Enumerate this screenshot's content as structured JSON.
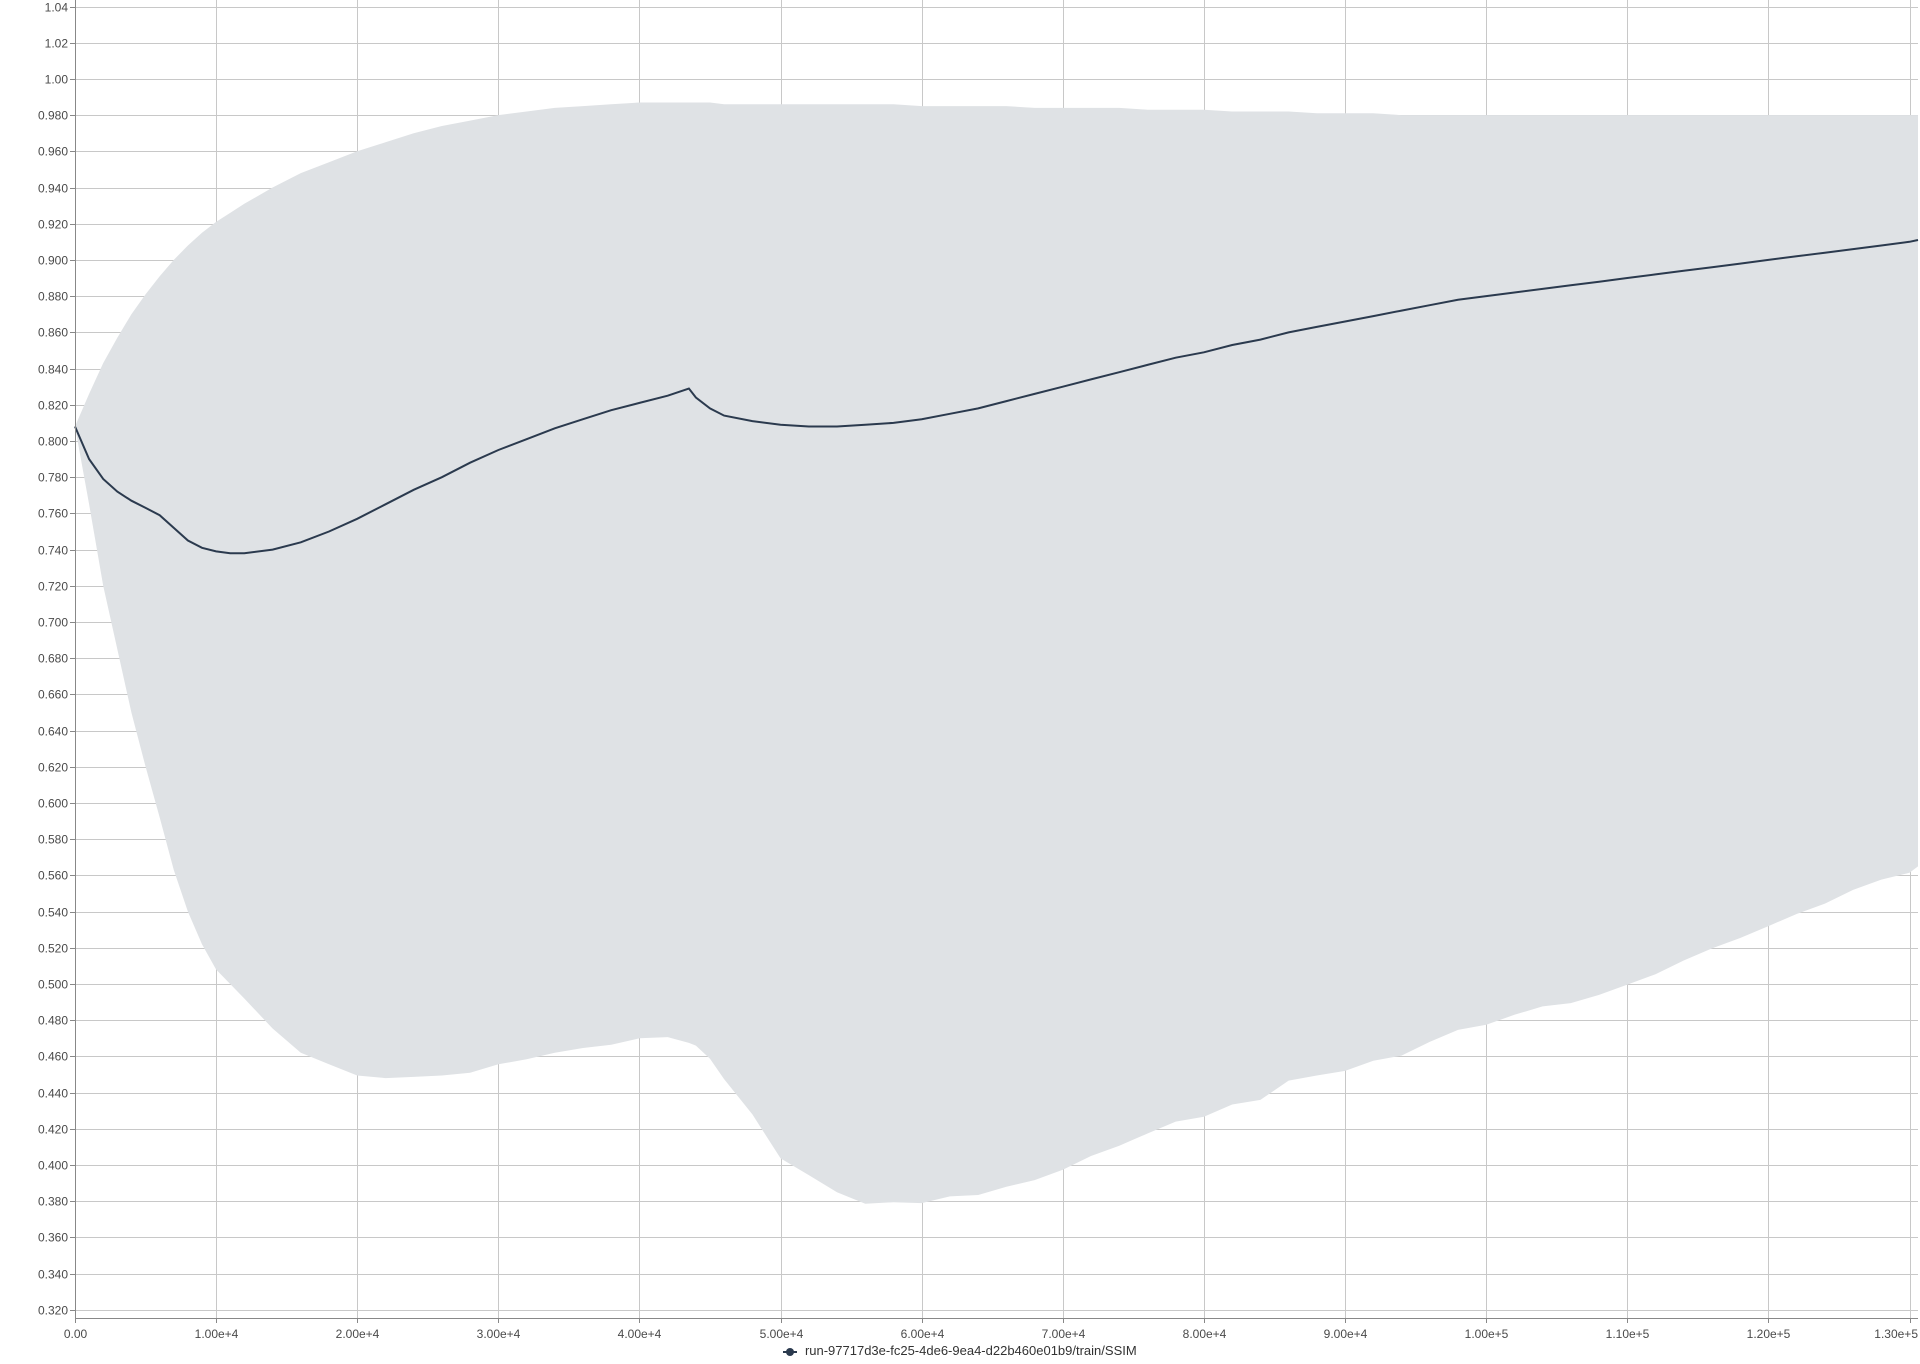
{
  "chart_data": {
    "type": "line",
    "title": "",
    "xlabel": "",
    "ylabel": "",
    "xlim": [
      0,
      130600
    ],
    "ylim": [
      0.3155,
      1.0436
    ],
    "grid": true,
    "legend_position": "bottom-center",
    "x_ticks": [
      {
        "value": 0,
        "label": "0.00"
      },
      {
        "value": 10000,
        "label": "1.00e+4"
      },
      {
        "value": 20000,
        "label": "2.00e+4"
      },
      {
        "value": 30000,
        "label": "3.00e+4"
      },
      {
        "value": 40000,
        "label": "4.00e+4"
      },
      {
        "value": 50000,
        "label": "5.00e+4"
      },
      {
        "value": 60000,
        "label": "6.00e+4"
      },
      {
        "value": 70000,
        "label": "7.00e+4"
      },
      {
        "value": 80000,
        "label": "8.00e+4"
      },
      {
        "value": 90000,
        "label": "9.00e+4"
      },
      {
        "value": 100000,
        "label": "1.00e+5"
      },
      {
        "value": 110000,
        "label": "1.10e+5"
      },
      {
        "value": 120000,
        "label": "1.20e+5"
      },
      {
        "value": 130000,
        "label": "1.30e+5"
      }
    ],
    "y_ticks": [
      {
        "value": 0.32,
        "label": "0.320"
      },
      {
        "value": 0.34,
        "label": "0.340"
      },
      {
        "value": 0.36,
        "label": "0.360"
      },
      {
        "value": 0.38,
        "label": "0.380"
      },
      {
        "value": 0.4,
        "label": "0.400"
      },
      {
        "value": 0.42,
        "label": "0.420"
      },
      {
        "value": 0.44,
        "label": "0.440"
      },
      {
        "value": 0.46,
        "label": "0.460"
      },
      {
        "value": 0.48,
        "label": "0.480"
      },
      {
        "value": 0.5,
        "label": "0.500"
      },
      {
        "value": 0.52,
        "label": "0.520"
      },
      {
        "value": 0.54,
        "label": "0.540"
      },
      {
        "value": 0.56,
        "label": "0.560"
      },
      {
        "value": 0.58,
        "label": "0.580"
      },
      {
        "value": 0.6,
        "label": "0.600"
      },
      {
        "value": 0.62,
        "label": "0.620"
      },
      {
        "value": 0.64,
        "label": "0.640"
      },
      {
        "value": 0.66,
        "label": "0.660"
      },
      {
        "value": 0.68,
        "label": "0.680"
      },
      {
        "value": 0.7,
        "label": "0.700"
      },
      {
        "value": 0.72,
        "label": "0.720"
      },
      {
        "value": 0.74,
        "label": "0.740"
      },
      {
        "value": 0.76,
        "label": "0.760"
      },
      {
        "value": 0.78,
        "label": "0.780"
      },
      {
        "value": 0.8,
        "label": "0.800"
      },
      {
        "value": 0.82,
        "label": "0.820"
      },
      {
        "value": 0.84,
        "label": "0.840"
      },
      {
        "value": 0.86,
        "label": "0.860"
      },
      {
        "value": 0.88,
        "label": "0.880"
      },
      {
        "value": 0.9,
        "label": "0.900"
      },
      {
        "value": 0.92,
        "label": "0.920"
      },
      {
        "value": 0.94,
        "label": "0.940"
      },
      {
        "value": 0.96,
        "label": "0.960"
      },
      {
        "value": 0.98,
        "label": "0.980"
      },
      {
        "value": 1.0,
        "label": "1.00"
      },
      {
        "value": 1.02,
        "label": "1.02"
      },
      {
        "value": 1.04,
        "label": "1.04"
      }
    ],
    "series": [
      {
        "name": "run-97717d3e-fc25-4de6-9ea4-d22b460e01b9/train/SSIM",
        "color": "#2b3a4e",
        "band_color": "#dfe2e5",
        "x": [
          0,
          1000,
          2000,
          3000,
          4000,
          5000,
          6000,
          7000,
          8000,
          9000,
          10000,
          11000,
          12000,
          14000,
          16000,
          18000,
          20000,
          22000,
          24000,
          26000,
          28000,
          30000,
          32000,
          34000,
          36000,
          38000,
          40000,
          42000,
          43500,
          44000,
          45000,
          46000,
          48000,
          50000,
          52000,
          54000,
          56000,
          58000,
          60000,
          62000,
          64000,
          66000,
          68000,
          70000,
          72000,
          74000,
          76000,
          78000,
          80000,
          82000,
          84000,
          86000,
          88000,
          90000,
          92000,
          94000,
          96000,
          98000,
          100000,
          102000,
          104000,
          106000,
          108000,
          110000,
          112000,
          114000,
          116000,
          118000,
          120000,
          122000,
          124000,
          126000,
          128000,
          130000,
          130600
        ],
        "mean": [
          0.808,
          0.79,
          0.779,
          0.772,
          0.767,
          0.763,
          0.759,
          0.752,
          0.745,
          0.741,
          0.739,
          0.738,
          0.738,
          0.74,
          0.744,
          0.75,
          0.757,
          0.765,
          0.773,
          0.78,
          0.788,
          0.795,
          0.801,
          0.807,
          0.812,
          0.817,
          0.821,
          0.825,
          0.829,
          0.824,
          0.818,
          0.814,
          0.811,
          0.809,
          0.808,
          0.808,
          0.809,
          0.81,
          0.812,
          0.815,
          0.818,
          0.822,
          0.826,
          0.83,
          0.834,
          0.838,
          0.842,
          0.846,
          0.849,
          0.853,
          0.856,
          0.86,
          0.863,
          0.866,
          0.869,
          0.872,
          0.875,
          0.878,
          0.88,
          0.882,
          0.884,
          0.886,
          0.888,
          0.89,
          0.892,
          0.894,
          0.896,
          0.898,
          0.9,
          0.902,
          0.904,
          0.906,
          0.908,
          0.91,
          0.911
        ],
        "upper": [
          0.808,
          0.826,
          0.843,
          0.857,
          0.87,
          0.881,
          0.891,
          0.9,
          0.908,
          0.915,
          0.921,
          0.926,
          0.931,
          0.94,
          0.948,
          0.954,
          0.96,
          0.965,
          0.97,
          0.974,
          0.977,
          0.98,
          0.982,
          0.984,
          0.985,
          0.986,
          0.987,
          0.987,
          0.987,
          0.987,
          0.987,
          0.986,
          0.986,
          0.986,
          0.986,
          0.986,
          0.986,
          0.986,
          0.985,
          0.985,
          0.985,
          0.985,
          0.984,
          0.984,
          0.984,
          0.984,
          0.983,
          0.983,
          0.983,
          0.982,
          0.982,
          0.982,
          0.981,
          0.981,
          0.981,
          0.98,
          0.98,
          0.98,
          0.98,
          0.98,
          0.98,
          0.98,
          0.98,
          0.98,
          0.98,
          0.98,
          0.98,
          0.98,
          0.98,
          0.98,
          0.98,
          0.98,
          0.98,
          0.98,
          0.98
        ],
        "lower": [
          0.808,
          0.765,
          0.72,
          0.685,
          0.65,
          0.62,
          0.592,
          0.563,
          0.54,
          0.522,
          0.508,
          0.5,
          0.492,
          0.476,
          0.462,
          0.455,
          0.45,
          0.448,
          0.448,
          0.45,
          0.451,
          0.455,
          0.459,
          0.462,
          0.464,
          0.467,
          0.47,
          0.47,
          0.468,
          0.466,
          0.458,
          0.448,
          0.428,
          0.403,
          0.395,
          0.385,
          0.378,
          0.38,
          0.379,
          0.382,
          0.384,
          0.388,
          0.391,
          0.398,
          0.405,
          0.41,
          0.418,
          0.424,
          0.426,
          0.434,
          0.436,
          0.446,
          0.45,
          0.452,
          0.457,
          0.461,
          0.468,
          0.474,
          0.478,
          0.483,
          0.487,
          0.49,
          0.494,
          0.499,
          0.506,
          0.513,
          0.519,
          0.526,
          0.532,
          0.538,
          0.545,
          0.552,
          0.557,
          0.562,
          0.565
        ]
      }
    ]
  }
}
